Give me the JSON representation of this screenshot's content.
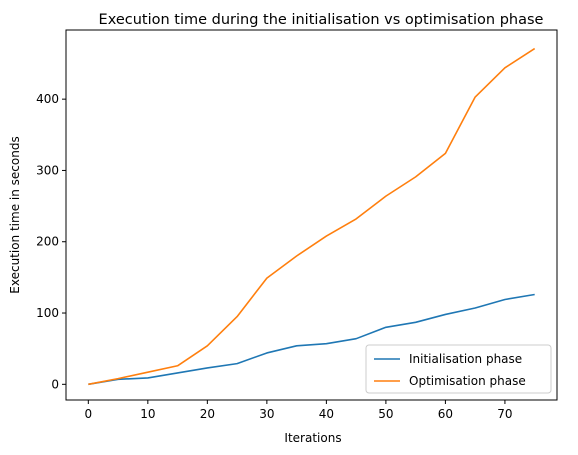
{
  "chart_data": {
    "type": "line",
    "title": "Execution time during the initialisation vs optimisation phase",
    "xlabel": "Iterations",
    "ylabel": "Execution time in seconds",
    "xlim": [
      -3.75,
      78.75
    ],
    "ylim": [
      -22,
      497
    ],
    "xticks": [
      0,
      10,
      20,
      30,
      40,
      50,
      60,
      70
    ],
    "yticks": [
      0,
      100,
      200,
      300,
      400
    ],
    "grid": false,
    "legend_position": "lower-right",
    "x": [
      0,
      5,
      10,
      15,
      20,
      25,
      30,
      35,
      40,
      45,
      50,
      55,
      60,
      65,
      70,
      75
    ],
    "series": [
      {
        "name": "Initialisation phase",
        "color": "#1f77b4",
        "values": [
          0,
          7,
          9,
          16,
          23,
          29,
          44,
          54,
          57,
          64,
          80,
          87,
          98,
          107,
          119,
          126
        ]
      },
      {
        "name": "Optimisation phase",
        "color": "#ff7f0e",
        "values": [
          0,
          8,
          17,
          26,
          54,
          95,
          149,
          180,
          208,
          232,
          264,
          291,
          324,
          403,
          444,
          471
        ]
      }
    ]
  }
}
